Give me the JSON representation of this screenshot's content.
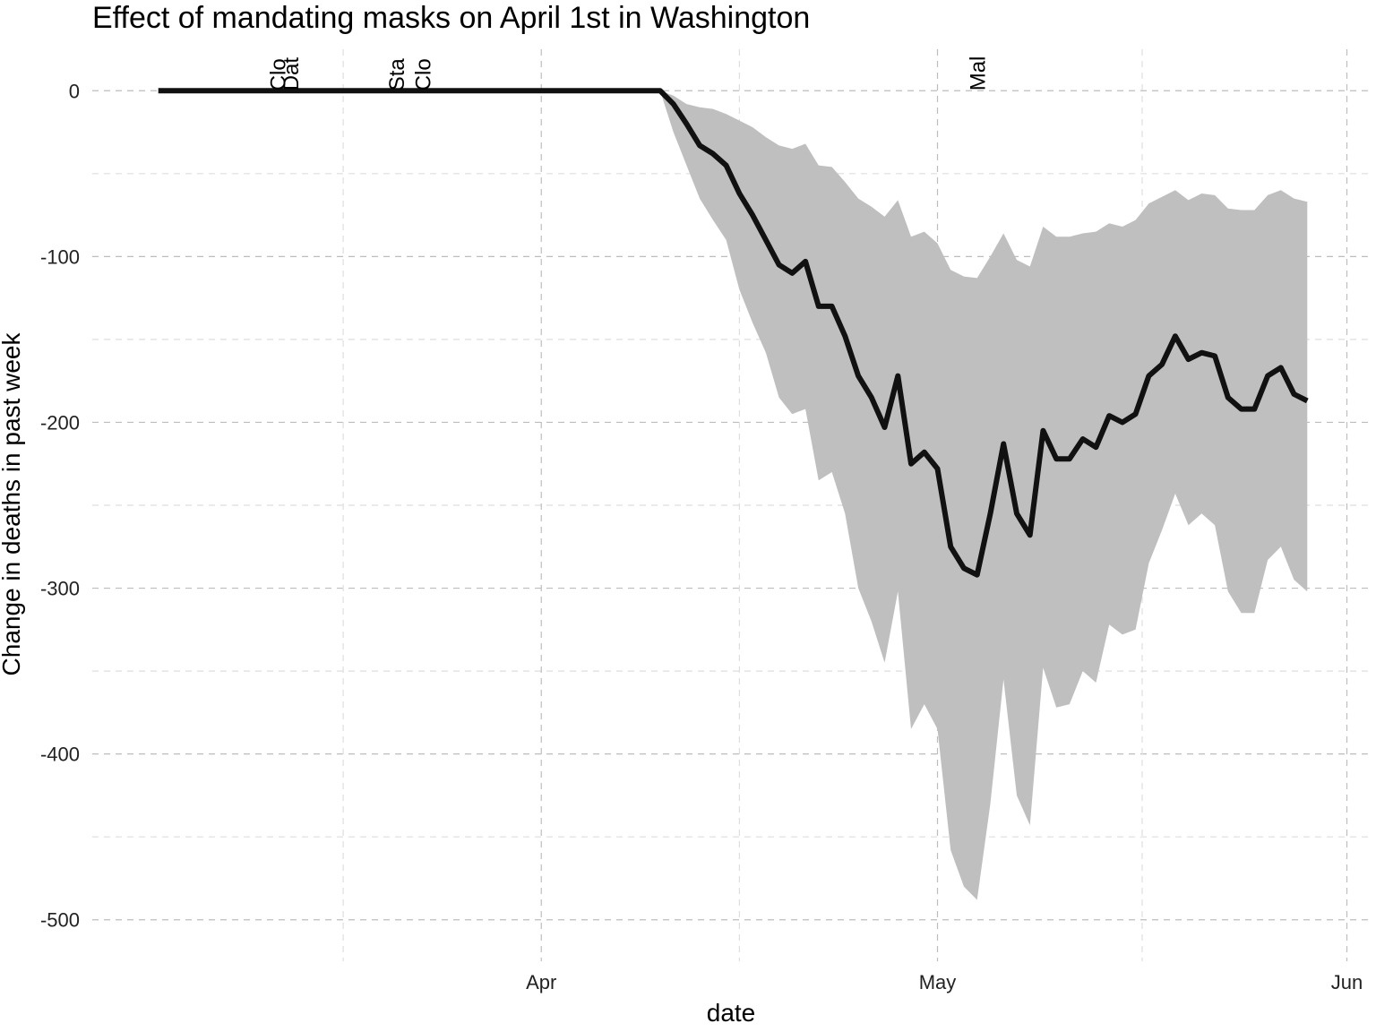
{
  "chart_data": {
    "type": "line",
    "title": "Effect of mandating masks on April 1st in Washington",
    "xlabel": "date",
    "ylabel": "Change in deaths in past week",
    "x_start": "2020-03-03",
    "x_ticks": [
      {
        "label": "Apr",
        "date": "2020-04-01"
      },
      {
        "label": "May",
        "date": "2020-05-01"
      },
      {
        "label": "Jun",
        "date": "2020-06-01"
      }
    ],
    "xlim": [
      "2020-02-27",
      "2020-06-03"
    ],
    "ylim": [
      -525,
      25
    ],
    "y_ticks": [
      0,
      -100,
      -200,
      -300,
      -400,
      -500
    ],
    "grid": true,
    "annotations": [
      {
        "text": "Clo",
        "date": "2020-03-12"
      },
      {
        "text": "Dat",
        "date": "2020-03-13"
      },
      {
        "text": "Sta",
        "date": "2020-03-21"
      },
      {
        "text": "Clo",
        "date": "2020-03-23"
      },
      {
        "text": "Mal",
        "date": "2020-05-04"
      }
    ],
    "series": [
      {
        "values": [
          0,
          0,
          0,
          0,
          0,
          0,
          0,
          0,
          0,
          0,
          0,
          0,
          0,
          0,
          0,
          0,
          0,
          0,
          0,
          0,
          0,
          0,
          0,
          0,
          0,
          0,
          0,
          0,
          0,
          0,
          0,
          0,
          0,
          0,
          0,
          0,
          0,
          0,
          0,
          -8,
          -20,
          -33,
          -38,
          -45,
          -62,
          -75,
          -90,
          -105,
          -110,
          -103,
          -130,
          -130,
          -148,
          -172,
          -185,
          -203,
          -172,
          -225,
          -218,
          -228,
          -275,
          -288,
          -292,
          -255,
          -213,
          -255,
          -268,
          -205,
          -222,
          -222,
          -210,
          -215,
          -196,
          -200,
          -195,
          -172,
          -165,
          -148,
          -162,
          -158,
          -160,
          -185,
          -192,
          -192,
          -172,
          -167,
          -183,
          -187
        ],
        "lower": [
          0,
          0,
          0,
          0,
          0,
          0,
          0,
          0,
          0,
          0,
          0,
          0,
          0,
          0,
          0,
          0,
          0,
          0,
          0,
          0,
          0,
          0,
          0,
          0,
          0,
          0,
          0,
          0,
          0,
          0,
          0,
          0,
          0,
          0,
          0,
          0,
          0,
          0,
          0,
          -25,
          -45,
          -65,
          -78,
          -90,
          -120,
          -140,
          -158,
          -185,
          -195,
          -192,
          -235,
          -230,
          -255,
          -300,
          -320,
          -345,
          -302,
          -385,
          -370,
          -385,
          -458,
          -480,
          -488,
          -430,
          -355,
          -425,
          -443,
          -348,
          -372,
          -370,
          -350,
          -357,
          -322,
          -328,
          -325,
          -285,
          -265,
          -243,
          -262,
          -255,
          -262,
          -302,
          -315,
          -315,
          -283,
          -275,
          -295,
          -302
        ],
        "upper": [
          0,
          0,
          0,
          0,
          0,
          0,
          0,
          0,
          0,
          0,
          0,
          0,
          0,
          0,
          0,
          0,
          0,
          0,
          0,
          0,
          0,
          0,
          0,
          0,
          0,
          0,
          0,
          0,
          0,
          0,
          0,
          0,
          0,
          0,
          0,
          0,
          0,
          0,
          0,
          -3,
          -8,
          -10,
          -11,
          -14,
          -18,
          -22,
          -28,
          -33,
          -35,
          -32,
          -45,
          -46,
          -55,
          -65,
          -70,
          -76,
          -66,
          -88,
          -85,
          -92,
          -108,
          -112,
          -113,
          -100,
          -86,
          -102,
          -106,
          -82,
          -88,
          -88,
          -86,
          -85,
          -80,
          -82,
          -78,
          -68,
          -64,
          -60,
          -66,
          -62,
          -63,
          -71,
          -72,
          -72,
          -63,
          -60,
          -65,
          -67
        ]
      }
    ]
  }
}
